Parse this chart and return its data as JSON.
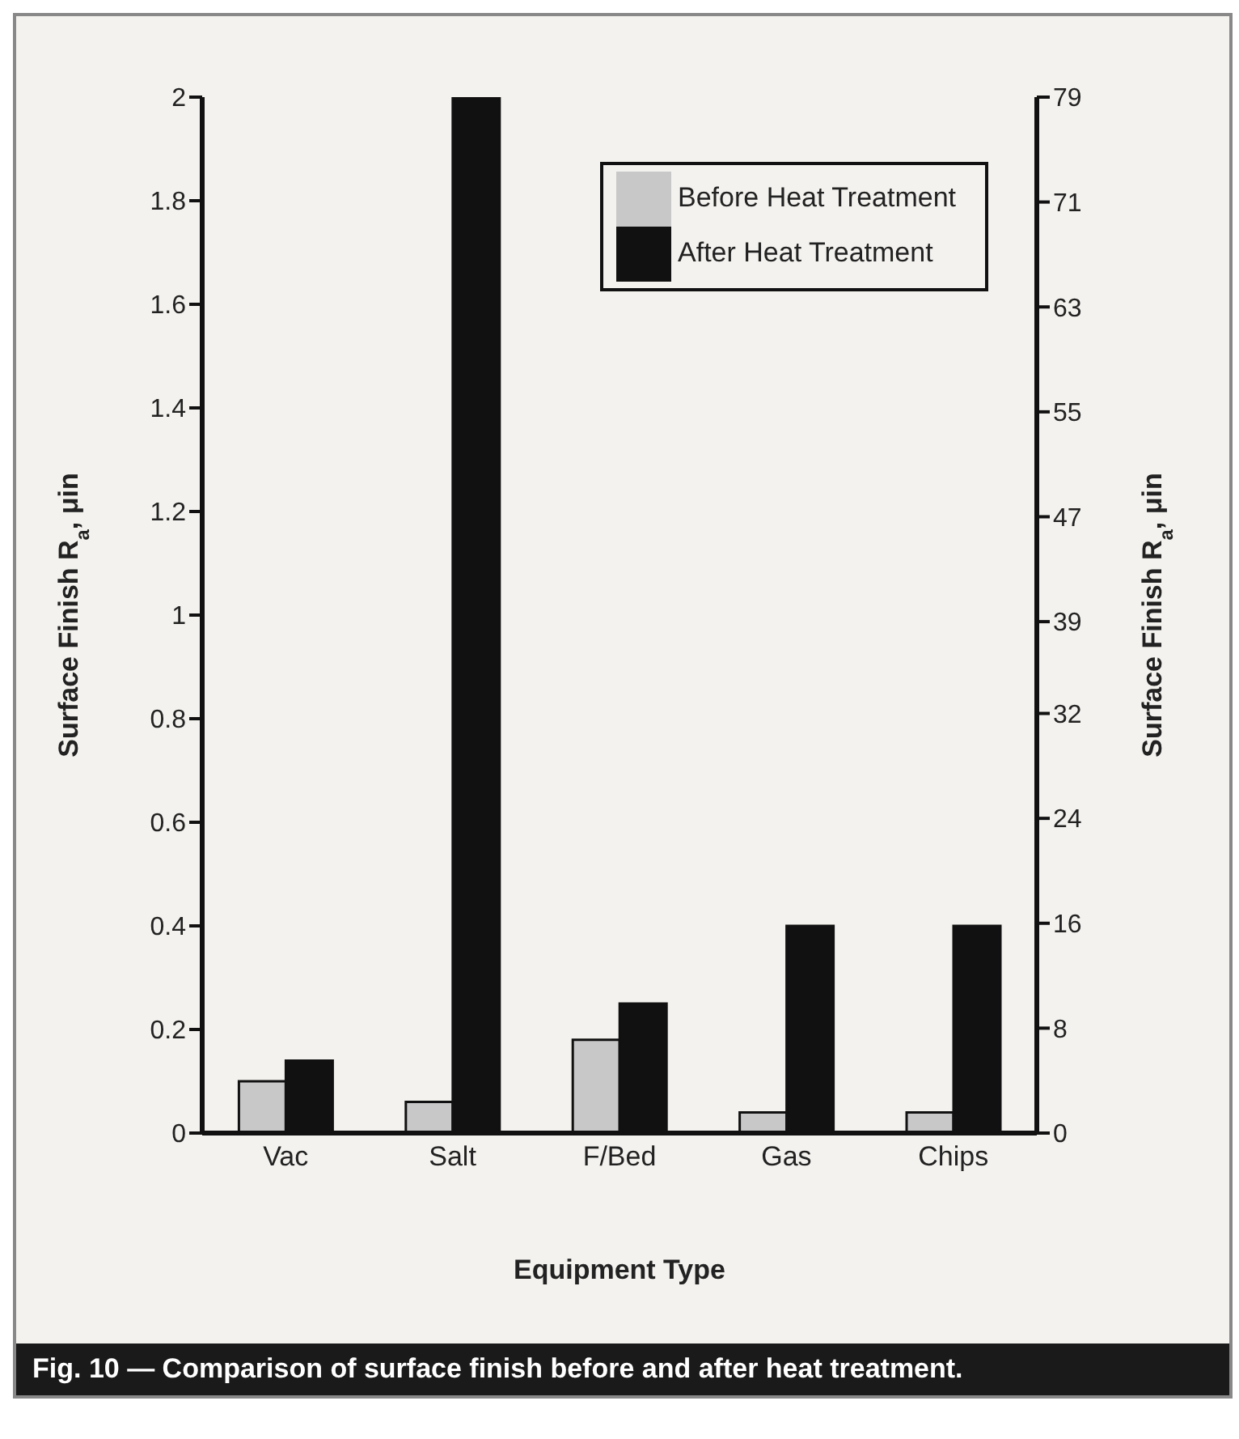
{
  "chart_data": {
    "type": "bar",
    "title": "Fig. 10 — Comparison of surface finish before and after heat treatment.",
    "xlabel": "Equipment Type",
    "ylabel": "Surface Finish R$_{a}$, μin",
    "y2label": "Surface Finish R$_{a}$, μin",
    "categories": [
      "Vac",
      "Salt",
      "F/Bed",
      "Gas",
      "Chips"
    ],
    "series": [
      {
        "name": "Before Heat Treatment",
        "color": "#c8c8c8",
        "values": [
          0.1,
          0.06,
          0.18,
          0.04,
          0.04
        ]
      },
      {
        "name": "After Heat Treatment",
        "color": "#111111",
        "values": [
          0.14,
          2,
          0.25,
          0.4,
          0.4
        ]
      }
    ],
    "ylim": [
      0,
      2
    ],
    "yticks": [
      0,
      0.2,
      0.4,
      0.6,
      0.8,
      1,
      1.2,
      1.4,
      1.6,
      1.8,
      2
    ],
    "y2lim": [
      0,
      79
    ],
    "y2ticks": [
      0,
      8,
      16,
      24,
      32,
      39,
      47,
      55,
      63,
      71,
      79
    ],
    "legend": "top right",
    "grid": false
  }
}
